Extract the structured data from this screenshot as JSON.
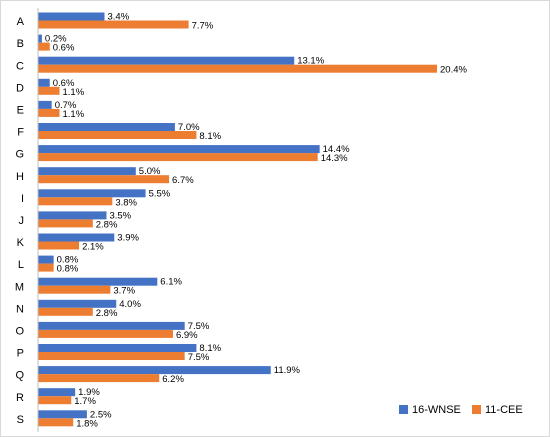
{
  "chart_data": {
    "type": "bar",
    "orientation": "horizontal",
    "categories": [
      "A",
      "B",
      "C",
      "D",
      "E",
      "F",
      "G",
      "H",
      "I",
      "J",
      "K",
      "L",
      "M",
      "N",
      "O",
      "P",
      "Q",
      "R",
      "S"
    ],
    "series": [
      {
        "name": "16-WNSE",
        "color": "#4472c4",
        "values": [
          3.4,
          0.2,
          13.1,
          0.6,
          0.7,
          7.0,
          14.4,
          5.0,
          5.5,
          3.5,
          3.9,
          0.8,
          6.1,
          4.0,
          7.5,
          8.1,
          11.9,
          1.9,
          2.5
        ],
        "labels": [
          "3.4%",
          "0.2%",
          "13.1%",
          "0.6%",
          "0.7%",
          "7.0%",
          "14.4%",
          "5.0%",
          "5.5%",
          "3.5%",
          "3.9%",
          "0.8%",
          "6.1%",
          "4.0%",
          "7.5%",
          "8.1%",
          "11.9%",
          "1.9%",
          "2.5%"
        ]
      },
      {
        "name": "11-CEE",
        "color": "#ed7d31",
        "values": [
          7.7,
          0.6,
          20.4,
          1.1,
          1.1,
          8.1,
          14.3,
          6.7,
          3.8,
          2.8,
          2.1,
          0.8,
          3.7,
          2.8,
          6.9,
          7.5,
          6.2,
          1.7,
          1.8
        ],
        "labels": [
          "7.7%",
          "0.6%",
          "20.4%",
          "1.1%",
          "1.1%",
          "8.1%",
          "14.3%",
          "6.7%",
          "3.8%",
          "2.8%",
          "2.1%",
          "0.8%",
          "3.7%",
          "2.8%",
          "6.9%",
          "7.5%",
          "6.2%",
          "1.7%",
          "1.8%"
        ]
      }
    ],
    "xlim": [
      0,
      20.4
    ],
    "grid": false,
    "legend_position": "bottom-right"
  }
}
